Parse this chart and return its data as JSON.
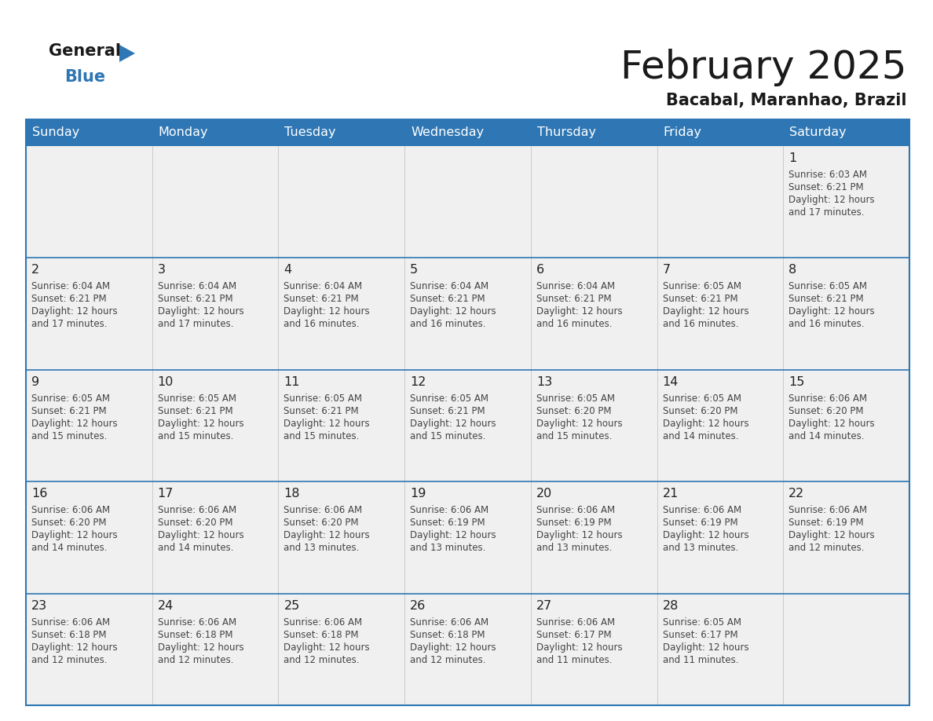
{
  "title": "February 2025",
  "subtitle": "Bacabal, Maranhao, Brazil",
  "header_bg": "#2E76B4",
  "header_text_color": "#FFFFFF",
  "cell_bg": "#F0F0F0",
  "day_names": [
    "Sunday",
    "Monday",
    "Tuesday",
    "Wednesday",
    "Thursday",
    "Friday",
    "Saturday"
  ],
  "text_color": "#444444",
  "number_color": "#222222",
  "line_color": "#2E76B4",
  "calendar_data": [
    [
      null,
      null,
      null,
      null,
      null,
      null,
      {
        "day": "1",
        "sunrise": "6:03 AM",
        "sunset": "6:21 PM",
        "daylight1": "12 hours",
        "daylight2": "and 17 minutes."
      }
    ],
    [
      {
        "day": "2",
        "sunrise": "6:04 AM",
        "sunset": "6:21 PM",
        "daylight1": "12 hours",
        "daylight2": "and 17 minutes."
      },
      {
        "day": "3",
        "sunrise": "6:04 AM",
        "sunset": "6:21 PM",
        "daylight1": "12 hours",
        "daylight2": "and 17 minutes."
      },
      {
        "day": "4",
        "sunrise": "6:04 AM",
        "sunset": "6:21 PM",
        "daylight1": "12 hours",
        "daylight2": "and 16 minutes."
      },
      {
        "day": "5",
        "sunrise": "6:04 AM",
        "sunset": "6:21 PM",
        "daylight1": "12 hours",
        "daylight2": "and 16 minutes."
      },
      {
        "day": "6",
        "sunrise": "6:04 AM",
        "sunset": "6:21 PM",
        "daylight1": "12 hours",
        "daylight2": "and 16 minutes."
      },
      {
        "day": "7",
        "sunrise": "6:05 AM",
        "sunset": "6:21 PM",
        "daylight1": "12 hours",
        "daylight2": "and 16 minutes."
      },
      {
        "day": "8",
        "sunrise": "6:05 AM",
        "sunset": "6:21 PM",
        "daylight1": "12 hours",
        "daylight2": "and 16 minutes."
      }
    ],
    [
      {
        "day": "9",
        "sunrise": "6:05 AM",
        "sunset": "6:21 PM",
        "daylight1": "12 hours",
        "daylight2": "and 15 minutes."
      },
      {
        "day": "10",
        "sunrise": "6:05 AM",
        "sunset": "6:21 PM",
        "daylight1": "12 hours",
        "daylight2": "and 15 minutes."
      },
      {
        "day": "11",
        "sunrise": "6:05 AM",
        "sunset": "6:21 PM",
        "daylight1": "12 hours",
        "daylight2": "and 15 minutes."
      },
      {
        "day": "12",
        "sunrise": "6:05 AM",
        "sunset": "6:21 PM",
        "daylight1": "12 hours",
        "daylight2": "and 15 minutes."
      },
      {
        "day": "13",
        "sunrise": "6:05 AM",
        "sunset": "6:20 PM",
        "daylight1": "12 hours",
        "daylight2": "and 15 minutes."
      },
      {
        "day": "14",
        "sunrise": "6:05 AM",
        "sunset": "6:20 PM",
        "daylight1": "12 hours",
        "daylight2": "and 14 minutes."
      },
      {
        "day": "15",
        "sunrise": "6:06 AM",
        "sunset": "6:20 PM",
        "daylight1": "12 hours",
        "daylight2": "and 14 minutes."
      }
    ],
    [
      {
        "day": "16",
        "sunrise": "6:06 AM",
        "sunset": "6:20 PM",
        "daylight1": "12 hours",
        "daylight2": "and 14 minutes."
      },
      {
        "day": "17",
        "sunrise": "6:06 AM",
        "sunset": "6:20 PM",
        "daylight1": "12 hours",
        "daylight2": "and 14 minutes."
      },
      {
        "day": "18",
        "sunrise": "6:06 AM",
        "sunset": "6:20 PM",
        "daylight1": "12 hours",
        "daylight2": "and 13 minutes."
      },
      {
        "day": "19",
        "sunrise": "6:06 AM",
        "sunset": "6:19 PM",
        "daylight1": "12 hours",
        "daylight2": "and 13 minutes."
      },
      {
        "day": "20",
        "sunrise": "6:06 AM",
        "sunset": "6:19 PM",
        "daylight1": "12 hours",
        "daylight2": "and 13 minutes."
      },
      {
        "day": "21",
        "sunrise": "6:06 AM",
        "sunset": "6:19 PM",
        "daylight1": "12 hours",
        "daylight2": "and 13 minutes."
      },
      {
        "day": "22",
        "sunrise": "6:06 AM",
        "sunset": "6:19 PM",
        "daylight1": "12 hours",
        "daylight2": "and 12 minutes."
      }
    ],
    [
      {
        "day": "23",
        "sunrise": "6:06 AM",
        "sunset": "6:18 PM",
        "daylight1": "12 hours",
        "daylight2": "and 12 minutes."
      },
      {
        "day": "24",
        "sunrise": "6:06 AM",
        "sunset": "6:18 PM",
        "daylight1": "12 hours",
        "daylight2": "and 12 minutes."
      },
      {
        "day": "25",
        "sunrise": "6:06 AM",
        "sunset": "6:18 PM",
        "daylight1": "12 hours",
        "daylight2": "and 12 minutes."
      },
      {
        "day": "26",
        "sunrise": "6:06 AM",
        "sunset": "6:18 PM",
        "daylight1": "12 hours",
        "daylight2": "and 12 minutes."
      },
      {
        "day": "27",
        "sunrise": "6:06 AM",
        "sunset": "6:17 PM",
        "daylight1": "12 hours",
        "daylight2": "and 11 minutes."
      },
      {
        "day": "28",
        "sunrise": "6:05 AM",
        "sunset": "6:17 PM",
        "daylight1": "12 hours",
        "daylight2": "and 11 minutes."
      },
      null
    ]
  ]
}
